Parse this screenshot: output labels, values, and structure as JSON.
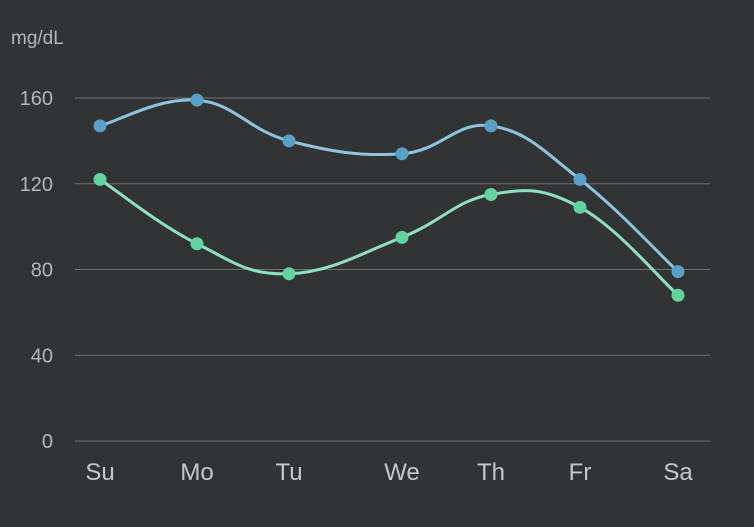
{
  "chart_data": {
    "type": "line",
    "ylabel": "mg/dL",
    "categories": [
      "Su",
      "Mo",
      "Tu",
      "We",
      "Th",
      "Fr",
      "Sa"
    ],
    "ylim": [
      0,
      160
    ],
    "yticks": [
      0,
      40,
      80,
      120,
      160
    ],
    "grid": true,
    "series": [
      {
        "color": "#8ec3de",
        "marker_color": "#5b9fc6",
        "values": [
          147,
          159,
          140,
          134,
          147,
          122,
          79
        ]
      },
      {
        "color": "#90e0bf",
        "marker_color": "#62d39f",
        "values": [
          122,
          92,
          78,
          95,
          115,
          109,
          68
        ]
      }
    ]
  }
}
